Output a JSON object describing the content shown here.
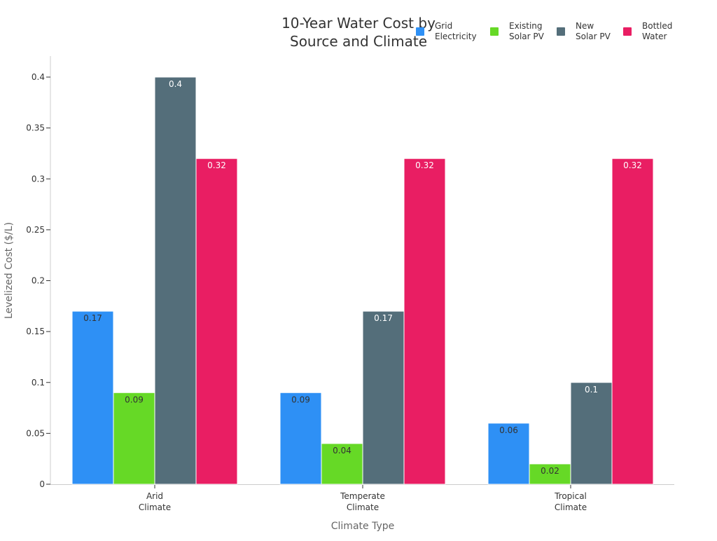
{
  "chart_data": {
    "type": "bar",
    "title": "10-Year Water Cost by\nSource and Climate",
    "xlabel": "Climate Type",
    "ylabel": "Levelized Cost ($/L)",
    "categories": [
      "Arid\nClimate",
      "Temperate\nClimate",
      "Tropical\nClimate"
    ],
    "ylim": [
      0,
      0.42
    ],
    "yticks": [
      "0",
      "0.05",
      "0.1",
      "0.15",
      "0.2",
      "0.25",
      "0.3",
      "0.35",
      "0.4"
    ],
    "grid": false,
    "legend_position": "top-right",
    "series": [
      {
        "name": "Grid\nElectricity",
        "color": "#2E90F5",
        "values": [
          0.17,
          0.09,
          0.06
        ],
        "label_color": "#333333"
      },
      {
        "name": "Existing\nSolar PV",
        "color": "#66D926",
        "values": [
          0.09,
          0.04,
          0.02
        ],
        "label_color": "#333333"
      },
      {
        "name": "New\nSolar PV",
        "color": "#546E7A",
        "values": [
          0.4,
          0.17,
          0.1
        ],
        "label_color": "#ffffff"
      },
      {
        "name": "Bottled\nWater",
        "color": "#E91E63",
        "values": [
          0.32,
          0.32,
          0.32
        ],
        "label_color": "#ffffff"
      }
    ]
  }
}
